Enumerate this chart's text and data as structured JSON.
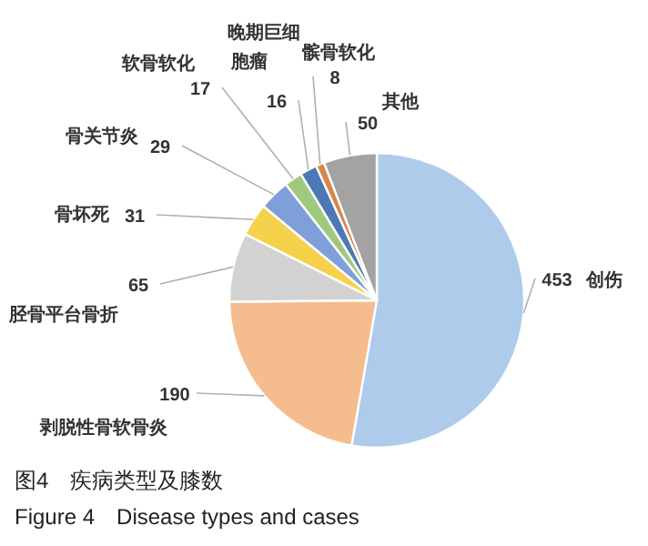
{
  "chart_data": {
    "type": "pie",
    "title": "图4　疾病类型及膝数",
    "subtitle": "Figure 4　Disease types and cases",
    "categories": [
      "创伤",
      "剥脱性骨软骨炎",
      "胫骨平台骨折",
      "骨坏死",
      "骨关节炎",
      "软骨软化",
      "晚期巨细胞瘤",
      "髌骨软化",
      "其他"
    ],
    "values": [
      453,
      190,
      65,
      31,
      29,
      17,
      16,
      8,
      50
    ],
    "colors": [
      "#aecbec",
      "#f5bc8e",
      "#d2d2d2",
      "#f6d24c",
      "#7f9fd8",
      "#9fca7e",
      "#4d78b6",
      "#d6884a",
      "#a3a3a3"
    ],
    "data_labels": true,
    "legend": false
  }
}
